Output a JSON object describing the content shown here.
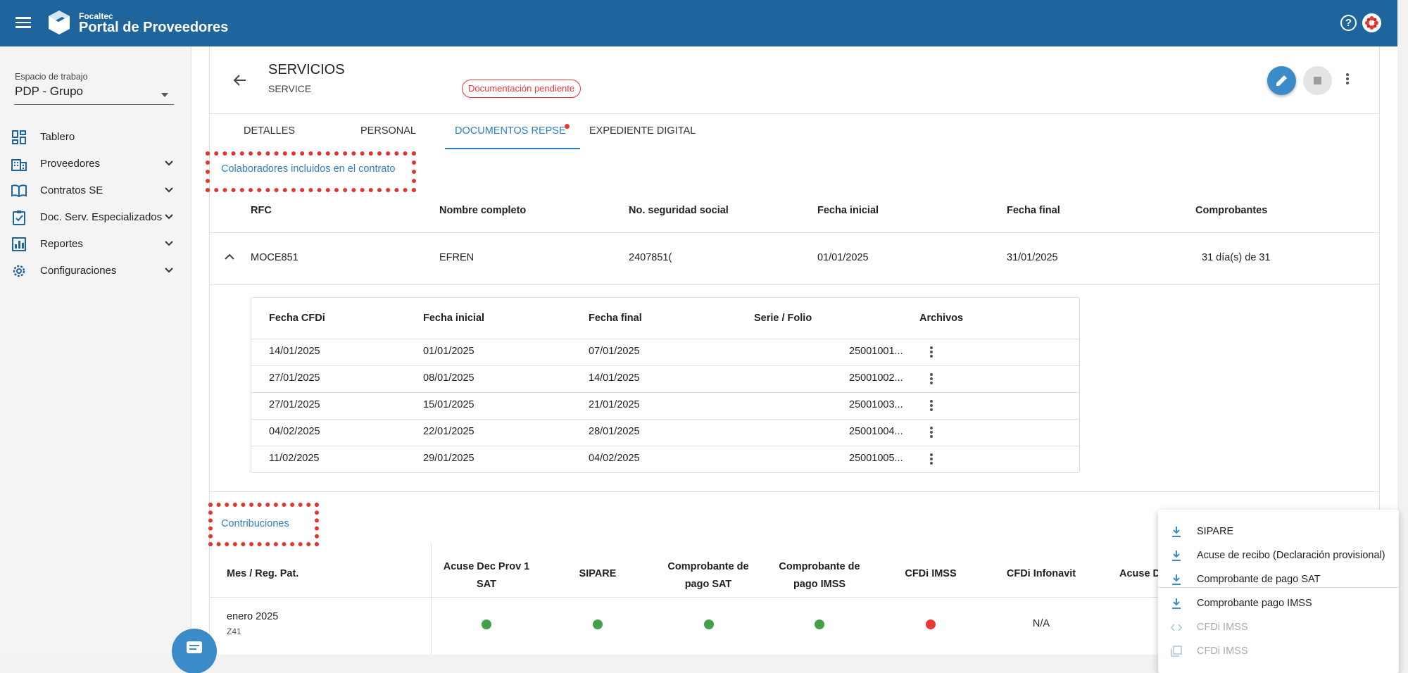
{
  "header": {
    "brand_small": "Focaltec",
    "brand_title": "Portal de Proveedores"
  },
  "sidebar": {
    "workspace_label": "Espacio de trabajo",
    "workspace_value": "PDP - Grupo",
    "items": [
      {
        "label": "Tablero",
        "icon": "dashboard-icon"
      },
      {
        "label": "Proveedores",
        "icon": "building-icon"
      },
      {
        "label": "Contratos SE",
        "icon": "book-icon"
      },
      {
        "label": "Doc. Serv. Especializados",
        "icon": "clipboard-check-icon"
      },
      {
        "label": "Reportes",
        "icon": "bar-chart-icon"
      },
      {
        "label": "Configuraciones",
        "icon": "gear-icon"
      }
    ]
  },
  "page": {
    "title": "SERVICIOS",
    "subtitle": "SERVICE",
    "status_badge": "Documentación pendiente"
  },
  "tabs": [
    "DETALLES",
    "PERSONAL",
    "DOCUMENTOS REPSE",
    "EXPEDIENTE DIGITAL"
  ],
  "collaborators": {
    "section_title": "Colaboradores incluidos en el contrato",
    "headers": [
      "RFC",
      "Nombre completo",
      "No. seguridad social",
      "Fecha inicial",
      "Fecha final",
      "Comprobantes"
    ],
    "row": {
      "rfc": "MOCE851",
      "name": "EFREN",
      "nss": "2407851(",
      "start": "01/01/2025",
      "end": "31/01/2025",
      "comprobantes": "31 día(s) de 31"
    },
    "inner_headers": [
      "Fecha CFDi",
      "Fecha inicial",
      "Fecha final",
      "Serie / Folio",
      "Archivos"
    ],
    "inner_rows": [
      [
        "14/01/2025",
        "01/01/2025",
        "07/01/2025",
        "25001001..."
      ],
      [
        "27/01/2025",
        "08/01/2025",
        "14/01/2025",
        "25001002..."
      ],
      [
        "27/01/2025",
        "15/01/2025",
        "21/01/2025",
        "25001003..."
      ],
      [
        "04/02/2025",
        "22/01/2025",
        "28/01/2025",
        "25001004..."
      ],
      [
        "11/02/2025",
        "29/01/2025",
        "04/02/2025",
        "25001005..."
      ]
    ]
  },
  "contributions": {
    "section_title": "Contribuciones",
    "headers": {
      "month": "Mes / Reg. Pat.",
      "acuse_1": "Acuse Dec Prov 1",
      "acuse_2": "SAT",
      "sipare": "SIPARE",
      "sat_1": "Comprobante de",
      "sat_2": "pago SAT",
      "imss_1": "Comprobante de",
      "imss_2": "pago IMSS",
      "cfdi_imss": "CFDi IMSS",
      "cfdi_infonavit": "CFDi Infonavit",
      "acuse_cut": "Acuse D"
    },
    "row": {
      "month": "enero 2025",
      "reg": "Z41",
      "na": "N/A"
    },
    "colors": {
      "ok": "#43a047",
      "error": "#e53935"
    }
  },
  "dropdown": {
    "items": [
      {
        "label": "SIPARE",
        "icon": "download-icon",
        "enabled": true
      },
      {
        "label": "Acuse de recibo (Declaración provisional)",
        "icon": "download-icon",
        "enabled": true
      },
      {
        "label": "Comprobante de pago SAT",
        "icon": "download-icon",
        "enabled": true
      },
      {
        "label": "Comprobante pago IMSS",
        "icon": "download-icon",
        "enabled": true
      },
      {
        "label": "CFDi IMSS",
        "icon": "code-icon",
        "enabled": false
      },
      {
        "label": "CFDi IMSS",
        "icon": "pdf-icon",
        "enabled": false
      }
    ]
  }
}
